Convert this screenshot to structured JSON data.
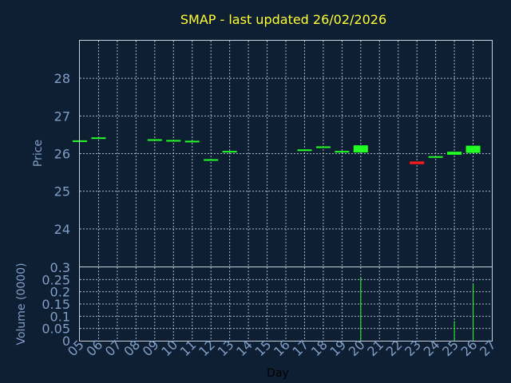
{
  "chart_data": {
    "type": "candlestick",
    "title": "SMAP - last updated 26/02/2026",
    "xlabel": "Day",
    "x_ticks": [
      "05",
      "06",
      "07",
      "08",
      "09",
      "10",
      "11",
      "12",
      "13",
      "14",
      "15",
      "16",
      "17",
      "18",
      "19",
      "20",
      "21",
      "22",
      "23",
      "24",
      "25",
      "26",
      "27"
    ],
    "price_panel": {
      "ylabel": "Price",
      "ylim": [
        23.0,
        29.0
      ],
      "yticks": [
        24,
        25,
        26,
        27,
        28
      ],
      "grid": true
    },
    "volume_panel": {
      "ylabel": "Volume (0000)",
      "ylim": [
        0,
        0.3
      ],
      "yticks": [
        "0",
        "0.05",
        "0.1",
        "0.15",
        "0.2",
        "0.25",
        "0.3"
      ],
      "grid": true
    },
    "up_color": "#22ff22",
    "down_color": "#ff1a1a",
    "series": [
      {
        "day": "05",
        "open": 26.33,
        "close": 26.33,
        "volume": 0.0
      },
      {
        "day": "06",
        "open": 26.41,
        "close": 26.41,
        "volume": 0.0
      },
      {
        "day": "09",
        "open": 26.36,
        "close": 26.36,
        "volume": 0.0
      },
      {
        "day": "10",
        "open": 26.34,
        "close": 26.34,
        "volume": 0.0
      },
      {
        "day": "11",
        "open": 26.32,
        "close": 26.32,
        "volume": 0.0
      },
      {
        "day": "12",
        "open": 25.83,
        "close": 25.83,
        "volume": 0.0
      },
      {
        "day": "13",
        "open": 26.05,
        "close": 26.05,
        "volume": 0.0
      },
      {
        "day": "17",
        "open": 26.09,
        "close": 26.09,
        "volume": 0.0
      },
      {
        "day": "18",
        "open": 26.17,
        "close": 26.17,
        "volume": 0.0
      },
      {
        "day": "19",
        "open": 26.05,
        "close": 26.05,
        "volume": 0.0
      },
      {
        "day": "20",
        "open": 26.03,
        "close": 26.22,
        "volume": 0.26
      },
      {
        "day": "23",
        "open": 25.79,
        "close": 25.72,
        "volume": 0.0
      },
      {
        "day": "24",
        "open": 25.91,
        "close": 25.91,
        "volume": 0.0
      },
      {
        "day": "25",
        "open": 25.97,
        "close": 26.05,
        "volume": 0.08
      },
      {
        "day": "26",
        "open": 26.02,
        "close": 26.21,
        "volume": 0.23
      }
    ]
  }
}
